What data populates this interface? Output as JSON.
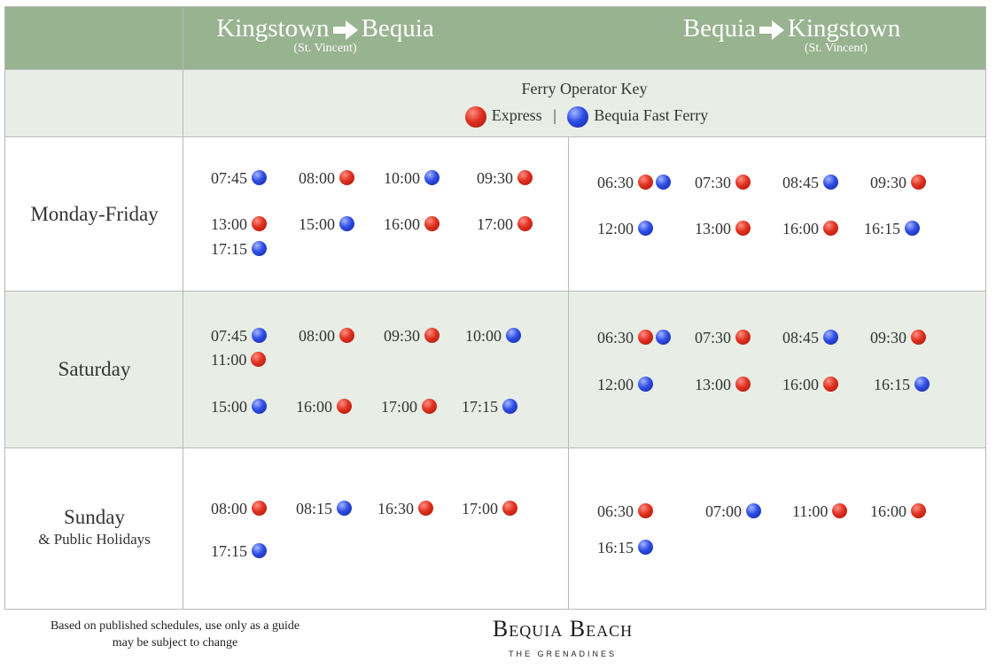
{
  "header": {
    "col1": {
      "from": "Kingstown",
      "to": "Bequia",
      "note": "(St. Vincent)"
    },
    "col2": {
      "from": "Bequia",
      "to": "Kingstown",
      "note": "(St. Vincent)"
    }
  },
  "key": {
    "title": "Ferry Operator Key",
    "express": "Express",
    "separator": "|",
    "fast": "Bequia Fast Ferry"
  },
  "days": {
    "weekday": "Monday-Friday",
    "saturday": "Saturday",
    "sunday": "Sunday",
    "sunday_sub": "& Public Holidays"
  },
  "colors": {
    "header_bg": "#98b38f",
    "band_bg": "#e8ede6",
    "express": "#d72e1f",
    "fast": "#2d46df"
  },
  "icons": {
    "arrow": "right-arrow-icon",
    "express": "red-dot-icon",
    "fast": "blue-dot-icon"
  },
  "schedule": {
    "wk_out": [
      {
        "time": "07:45",
        "ops": [
          "fast"
        ]
      },
      {
        "time": "08:00",
        "ops": [
          "express"
        ]
      },
      {
        "time": "10:00",
        "ops": [
          "fast"
        ]
      },
      {
        "time": "09:30",
        "ops": [
          "express"
        ]
      },
      {
        "time": "13:00",
        "ops": [
          "express"
        ]
      },
      {
        "time": "15:00",
        "ops": [
          "fast"
        ]
      },
      {
        "time": "16:00",
        "ops": [
          "express"
        ]
      },
      {
        "time": "17:00",
        "ops": [
          "express"
        ]
      },
      {
        "time": "17:15",
        "ops": [
          "fast"
        ]
      }
    ],
    "wk_in": [
      {
        "time": "06:30",
        "ops": [
          "express",
          "fast"
        ]
      },
      {
        "time": "07:30",
        "ops": [
          "express"
        ]
      },
      {
        "time": "08:45",
        "ops": [
          "fast"
        ]
      },
      {
        "time": "09:30",
        "ops": [
          "express"
        ]
      },
      {
        "time": "12:00",
        "ops": [
          "fast"
        ]
      },
      {
        "time": "13:00",
        "ops": [
          "express"
        ]
      },
      {
        "time": "16:00",
        "ops": [
          "express"
        ]
      },
      {
        "time": "16:15",
        "ops": [
          "fast"
        ]
      }
    ],
    "sat_out": [
      {
        "time": "07:45",
        "ops": [
          "fast"
        ]
      },
      {
        "time": "08:00",
        "ops": [
          "express"
        ]
      },
      {
        "time": "09:30",
        "ops": [
          "express"
        ]
      },
      {
        "time": "10:00",
        "ops": [
          "fast"
        ]
      },
      {
        "time": "11:00",
        "ops": [
          "express"
        ]
      },
      {
        "time": "15:00",
        "ops": [
          "fast"
        ]
      },
      {
        "time": "16:00",
        "ops": [
          "express"
        ]
      },
      {
        "time": "17:00",
        "ops": [
          "express"
        ]
      },
      {
        "time": "17:15",
        "ops": [
          "fast"
        ]
      }
    ],
    "sat_in": [
      {
        "time": "06:30",
        "ops": [
          "express",
          "fast"
        ]
      },
      {
        "time": "07:30",
        "ops": [
          "express"
        ]
      },
      {
        "time": "08:45",
        "ops": [
          "fast"
        ]
      },
      {
        "time": "09:30",
        "ops": [
          "express"
        ]
      },
      {
        "time": "12:00",
        "ops": [
          "fast"
        ]
      },
      {
        "time": "13:00",
        "ops": [
          "express"
        ]
      },
      {
        "time": "16:00",
        "ops": [
          "express"
        ]
      },
      {
        "time": "16:15",
        "ops": [
          "fast"
        ]
      }
    ],
    "sun_out": [
      {
        "time": "08:00",
        "ops": [
          "express"
        ]
      },
      {
        "time": "08:15",
        "ops": [
          "fast"
        ]
      },
      {
        "time": "16:30",
        "ops": [
          "express"
        ]
      },
      {
        "time": "17:00",
        "ops": [
          "express"
        ]
      },
      {
        "time": "17:15",
        "ops": [
          "fast"
        ]
      }
    ],
    "sun_in": [
      {
        "time": "06:30",
        "ops": [
          "express"
        ]
      },
      {
        "time": "07:00",
        "ops": [
          "fast"
        ]
      },
      {
        "time": "11:00",
        "ops": [
          "express"
        ]
      },
      {
        "time": "16:00",
        "ops": [
          "express"
        ]
      },
      {
        "time": "16:15",
        "ops": [
          "fast"
        ]
      }
    ]
  },
  "footer": {
    "line1": "Based on published schedules, use only as a guide",
    "line2": "may be subject to change",
    "logo": "Bequia Beach",
    "logo_sub": "THE GRENADINES"
  }
}
